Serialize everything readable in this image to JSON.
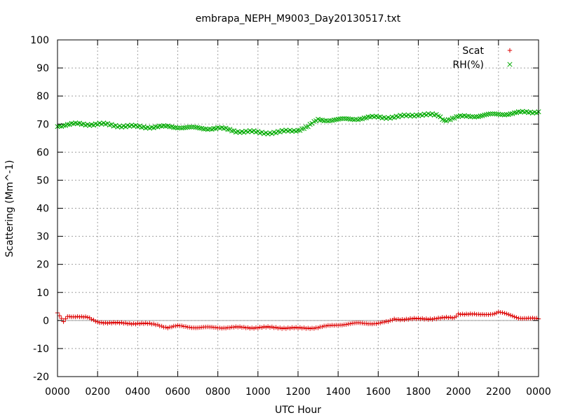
{
  "chart_data": {
    "type": "scatter",
    "title": "embrapa_NEPH_M9003_Day20130517.txt",
    "xlabel": "UTC Hour",
    "ylabel": "Scattering (Mm^-1)",
    "xlim": [
      0,
      24
    ],
    "ylim": [
      -20,
      100
    ],
    "grid": true,
    "legend_position": "top-right",
    "x_ticks": [
      0,
      2,
      4,
      6,
      8,
      10,
      12,
      14,
      16,
      18,
      20,
      22,
      24
    ],
    "x_tick_labels": [
      "0000",
      "0200",
      "0400",
      "0600",
      "0800",
      "1000",
      "1200",
      "1400",
      "1600",
      "1800",
      "2000",
      "2200",
      "0000"
    ],
    "y_ticks": [
      -20,
      -10,
      0,
      10,
      20,
      30,
      40,
      50,
      60,
      70,
      80,
      90,
      100
    ],
    "zero_line": true,
    "series": [
      {
        "name": "Scat",
        "marker": "plus",
        "color": "#dd0000",
        "x": [
          0,
          0.3,
          0.5,
          1.0,
          1.5,
          1.8,
          2.0,
          3.0,
          4.0,
          5.0,
          5.5,
          6.0,
          7.0,
          8.0,
          9.0,
          10.0,
          11.0,
          12.0,
          13.0,
          13.5,
          14.0,
          15.0,
          16.0,
          16.5,
          16.8,
          17.0,
          18.0,
          19.0,
          19.8,
          20.0,
          21.0,
          21.8,
          22.0,
          22.5,
          23.0,
          24.0
        ],
        "y": [
          2.5,
          -0.5,
          1.5,
          1.5,
          1.0,
          0.0,
          -0.5,
          -1.0,
          -1.0,
          -1.5,
          -2.5,
          -2.0,
          -2.5,
          -2.5,
          -2.5,
          -2.5,
          -2.5,
          -2.8,
          -2.5,
          -2.0,
          -1.5,
          -1.0,
          -1.0,
          -0.5,
          0.5,
          0.5,
          0.5,
          0.8,
          1.0,
          2.5,
          2.0,
          2.5,
          3.0,
          2.0,
          1.0,
          0.5
        ]
      },
      {
        "name": "RH(%)",
        "marker": "cross",
        "color": "#00aa00",
        "x": [
          0,
          1.0,
          2.0,
          3.0,
          4.0,
          5.0,
          6.0,
          7.0,
          8.0,
          9.0,
          10.0,
          11.0,
          12.0,
          12.5,
          13.0,
          14.0,
          15.0,
          16.0,
          17.0,
          18.0,
          19.0,
          19.3,
          20.0,
          21.0,
          22.0,
          23.0,
          24.0
        ],
        "y": [
          69.5,
          70.0,
          70.0,
          69.5,
          69.0,
          69.0,
          69.0,
          68.5,
          68.5,
          67.5,
          67.0,
          67.0,
          68.0,
          69.0,
          71.5,
          71.5,
          72.0,
          72.5,
          72.5,
          73.5,
          73.0,
          71.5,
          72.5,
          73.0,
          73.5,
          74.0,
          74.5
        ]
      }
    ]
  }
}
